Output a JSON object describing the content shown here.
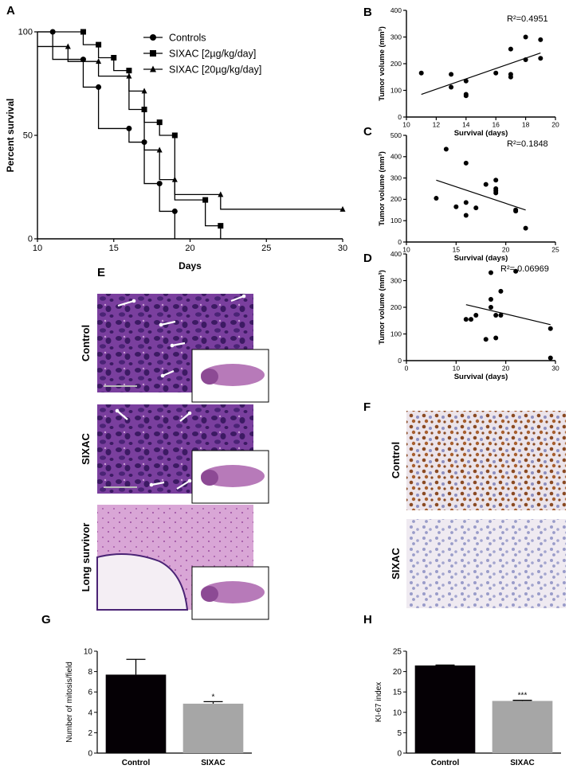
{
  "panels": {
    "A": "A",
    "B": "B",
    "C": "C",
    "D": "D",
    "E": "E",
    "F": "F",
    "G": "G",
    "H": "H"
  },
  "histology": {
    "he_rows": [
      "Control",
      "SIXAC",
      "Long survivor"
    ],
    "ihc_rows": [
      "Control",
      "SIXAC"
    ],
    "colors": {
      "he_bg": "#7a3f9e",
      "he_cell": "#3c1a63",
      "he_light": "#d9a6d6",
      "ihc_bg": "#ece4ea",
      "ihc_brown": "#8a4a23",
      "ihc_blue": "#8d8fc0"
    }
  },
  "chart_data": [
    {
      "id": "A",
      "type": "line",
      "subtype": "kaplan-meier",
      "xlabel": "Days",
      "ylabel": "Percent survival",
      "xlim": [
        10,
        30
      ],
      "ylim": [
        0,
        100
      ],
      "xticks": [
        10,
        15,
        20,
        25,
        30
      ],
      "yticks": [
        0,
        50,
        100
      ],
      "legend_position": "top-right",
      "series": [
        {
          "name": "Controls",
          "marker": "circle",
          "steps": [
            [
              10,
              100
            ],
            [
              11,
              86.7
            ],
            [
              13,
              73.3
            ],
            [
              14,
              53.3
            ],
            [
              16,
              46.7
            ],
            [
              17,
              26.7
            ],
            [
              18,
              13.3
            ],
            [
              19,
              0
            ]
          ]
        },
        {
          "name": "SIXAC [2µg/kg/day]",
          "marker": "square",
          "steps": [
            [
              10,
              100
            ],
            [
              13,
              93.8
            ],
            [
              14,
              87.5
            ],
            [
              15,
              81.3
            ],
            [
              16,
              62.5
            ],
            [
              17,
              56.3
            ],
            [
              18,
              50
            ],
            [
              19,
              18.8
            ],
            [
              21,
              6.3
            ],
            [
              22,
              0
            ]
          ]
        },
        {
          "name": "SIXAC [20µg/kg/day]",
          "marker": "triangle",
          "steps": [
            [
              10,
              92.9
            ],
            [
              12,
              85.7
            ],
            [
              14,
              78.6
            ],
            [
              16,
              71.4
            ],
            [
              17,
              42.9
            ],
            [
              18,
              28.6
            ],
            [
              19,
              21.4
            ],
            [
              22,
              14.3
            ],
            [
              30,
              14.3
            ]
          ]
        }
      ]
    },
    {
      "id": "B",
      "type": "scatter",
      "xlabel": "Survival (days)",
      "ylabel": "Tumor volume (mm³)",
      "xlim": [
        10,
        20
      ],
      "ylim": [
        0,
        400
      ],
      "xticks": [
        10,
        12,
        14,
        16,
        18,
        20
      ],
      "yticks": [
        0,
        100,
        200,
        300,
        400
      ],
      "annotation": "R²=0.4951",
      "points": [
        [
          11,
          165
        ],
        [
          13,
          160
        ],
        [
          13,
          112
        ],
        [
          14,
          135
        ],
        [
          14,
          85
        ],
        [
          14,
          80
        ],
        [
          16,
          165
        ],
        [
          17,
          255
        ],
        [
          17,
          160
        ],
        [
          17,
          150
        ],
        [
          18,
          300
        ],
        [
          18,
          215
        ],
        [
          19,
          290
        ],
        [
          19,
          220
        ]
      ],
      "fit": [
        [
          11,
          85
        ],
        [
          19,
          240
        ]
      ]
    },
    {
      "id": "C",
      "type": "scatter",
      "xlabel": "Survival (days)",
      "ylabel": "Tumor volume (mm³)",
      "xlim": [
        10,
        25
      ],
      "ylim": [
        0,
        500
      ],
      "xticks": [
        10,
        15,
        20,
        25
      ],
      "yticks": [
        0,
        100,
        200,
        300,
        400,
        500
      ],
      "annotation": "R²=0.1848",
      "points": [
        [
          13,
          205
        ],
        [
          14,
          435
        ],
        [
          15,
          165
        ],
        [
          16,
          370
        ],
        [
          16,
          185
        ],
        [
          16,
          125
        ],
        [
          17,
          160
        ],
        [
          18,
          270
        ],
        [
          19,
          290
        ],
        [
          19,
          250
        ],
        [
          19,
          240
        ],
        [
          19,
          230
        ],
        [
          21,
          150
        ],
        [
          21,
          145
        ],
        [
          22,
          65
        ]
      ],
      "fit": [
        [
          13,
          290
        ],
        [
          22,
          150
        ]
      ]
    },
    {
      "id": "D",
      "type": "scatter",
      "xlabel": "Survival (days)",
      "ylabel": "Tumor volume (mm³)",
      "xlim": [
        0,
        30
      ],
      "ylim": [
        0,
        400
      ],
      "xticks": [
        0,
        10,
        20,
        30
      ],
      "yticks": [
        0,
        100,
        200,
        300,
        400
      ],
      "annotation": "R²= 0.06969",
      "points": [
        [
          12,
          155
        ],
        [
          13,
          155
        ],
        [
          14,
          170
        ],
        [
          16,
          80
        ],
        [
          17,
          330
        ],
        [
          17,
          230
        ],
        [
          17,
          200
        ],
        [
          18,
          85
        ],
        [
          18,
          170
        ],
        [
          19,
          170
        ],
        [
          19,
          260
        ],
        [
          22,
          335
        ],
        [
          29,
          120
        ],
        [
          29,
          10
        ]
      ],
      "fit": [
        [
          12,
          210
        ],
        [
          29,
          135
        ]
      ]
    },
    {
      "id": "G",
      "type": "bar",
      "categories": [
        "Control",
        "SIXAC"
      ],
      "values": [
        7.7,
        4.85
      ],
      "errors": [
        1.5,
        0.2
      ],
      "ylabel": "Number of mitosis/field",
      "ylim": [
        0,
        10
      ],
      "yticks": [
        0,
        2,
        4,
        6,
        8,
        10
      ],
      "significance": [
        "",
        "*"
      ],
      "colors": [
        "#050005",
        "#a6a6a6"
      ]
    },
    {
      "id": "H",
      "type": "bar",
      "categories": [
        "Control",
        "SIXAC"
      ],
      "values": [
        21.5,
        12.8
      ],
      "errors": [
        0.1,
        0.15
      ],
      "ylabel": "KI-67 index",
      "ylim": [
        0,
        25
      ],
      "yticks": [
        0,
        5,
        10,
        15,
        20,
        25
      ],
      "significance": [
        "",
        "***"
      ],
      "colors": [
        "#050005",
        "#a6a6a6"
      ]
    }
  ]
}
